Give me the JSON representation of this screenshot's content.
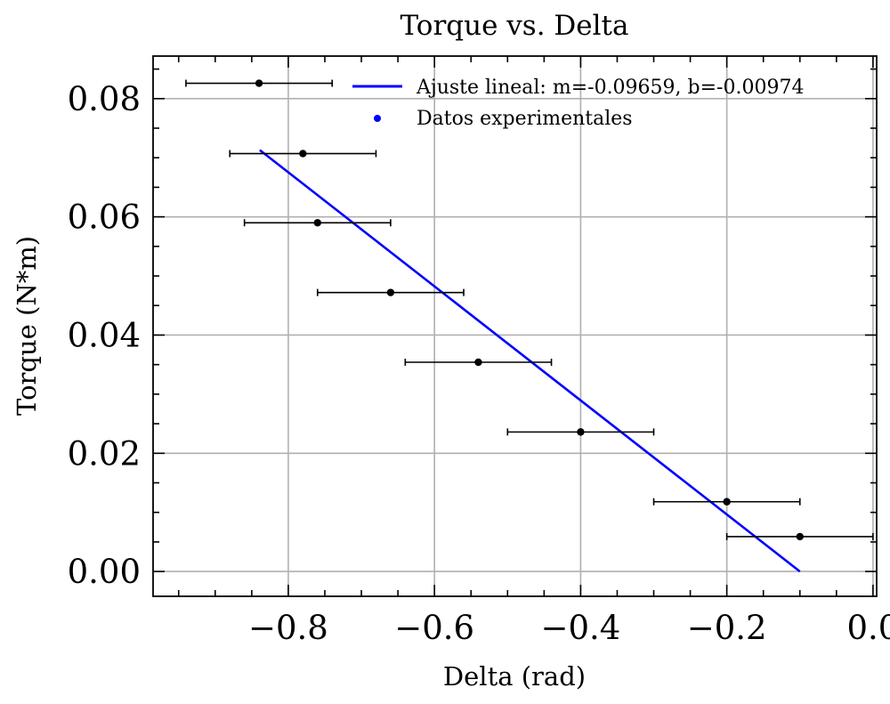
{
  "chart_data": {
    "type": "scatter",
    "title": "Torque vs. Delta",
    "xlabel": "Delta (rad)",
    "ylabel": "Torque (N*m)",
    "xlim": [
      -0.985,
      0.005
    ],
    "ylim": [
      -0.0042,
      0.0872
    ],
    "grid": true,
    "legend_position": "top-right",
    "x_ticks": [
      -0.8,
      -0.6,
      -0.4,
      -0.2,
      0.0
    ],
    "x_tick_labels": [
      "−0.8",
      "−0.6",
      "−0.4",
      "−0.2",
      "0.0"
    ],
    "y_ticks": [
      0.0,
      0.02,
      0.04,
      0.06,
      0.08
    ],
    "y_tick_labels": [
      "0.00",
      "0.02",
      "0.04",
      "0.06",
      "0.08"
    ],
    "series": [
      {
        "name": "Ajuste lineal: m=-0.09659, b=-0.00974",
        "kind": "line",
        "color": "#0000ff",
        "x": [
          -0.839,
          -0.1
        ],
        "y": [
          0.0713,
          0.0
        ]
      },
      {
        "name": "Datos experimentales",
        "kind": "scatter",
        "color": "#0000ff",
        "x": [
          -0.1,
          -0.2,
          -0.4,
          -0.54,
          -0.66,
          -0.76,
          -0.78,
          -0.84
        ],
        "y": [
          0.0059,
          0.0118,
          0.0236,
          0.0354,
          0.0472,
          0.059,
          0.0707,
          0.0826
        ],
        "xerr": [
          0.1,
          0.1,
          0.1,
          0.1,
          0.1,
          0.1,
          0.1,
          0.1
        ]
      }
    ]
  }
}
